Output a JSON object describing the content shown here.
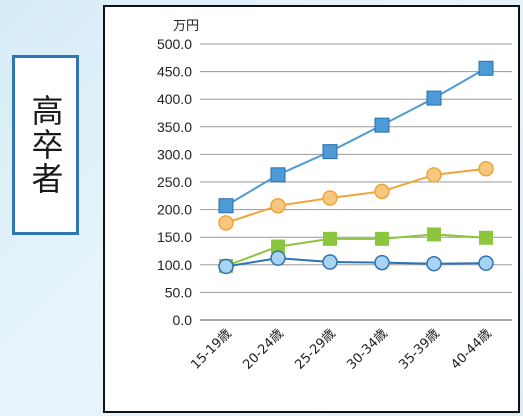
{
  "side_label": "高卒者",
  "chart_data": {
    "type": "line",
    "unit_label": "万円",
    "ylim": [
      0,
      500
    ],
    "ytick_step": 50,
    "ytick_labels": [
      "0.0",
      "50.0",
      "100.0",
      "150.0",
      "200.0",
      "250.0",
      "300.0",
      "350.0",
      "400.0",
      "450.0",
      "500.0"
    ],
    "categories": [
      "15-19歳",
      "20-24歳",
      "25-29歳",
      "30-34歳",
      "35-39歳",
      "40-44歳"
    ],
    "grid": true,
    "legend": "none",
    "series": [
      {
        "color": "#4c9ad6",
        "marker": "square",
        "values": [
          207,
          263,
          305,
          353,
          402,
          456
        ]
      },
      {
        "color": "#f0a53a",
        "marker": "circle",
        "values": [
          176,
          207,
          221,
          233,
          263,
          274
        ]
      },
      {
        "color": "#8cc63f",
        "marker": "square",
        "values": [
          98,
          133,
          147,
          147,
          155,
          149
        ]
      },
      {
        "color": "#2d73b5",
        "marker": "circle",
        "markerFill": "#a9d3f0",
        "values": [
          97,
          112,
          105,
          104,
          102,
          103
        ]
      }
    ]
  }
}
